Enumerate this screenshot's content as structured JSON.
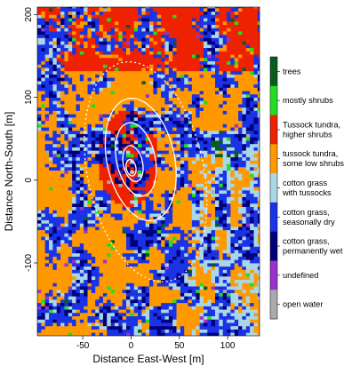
{
  "chart_data": {
    "type": "heatmap",
    "title": "",
    "xlabel": "Distance East-West [m]",
    "ylabel": "Distance North-South [m]",
    "xlim": [
      -97,
      133
    ],
    "ylim": [
      -188,
      209
    ],
    "x_ticks": [
      -50,
      0,
      50,
      100
    ],
    "y_ticks": [
      -100,
      0,
      100,
      200
    ],
    "tick_labels_x": [
      "-50",
      "0",
      "50",
      "100"
    ],
    "tick_labels_y": [
      "-100",
      "0",
      "100",
      "200"
    ],
    "grid": false,
    "legend_position": "right",
    "legend": [
      {
        "label": "trees",
        "color": "#0a5c1e"
      },
      {
        "label": "mostly shrubs",
        "color": "#22dd22"
      },
      {
        "label": "Tussock tundra, higher shrubs",
        "color": "#ee2200"
      },
      {
        "label": "tussock tundra, some low shrubs",
        "color": "#ff9900"
      },
      {
        "label": "cotton grass with tussocks",
        "color": "#aad7e6"
      },
      {
        "label": "cotton grass, seasonally dry",
        "color": "#1a33e6"
      },
      {
        "label": "cotton grass, permanently wet",
        "color": "#00007a"
      },
      {
        "label": "undefined",
        "color": "#9933cc"
      },
      {
        "label": "open water",
        "color": "#aaaaaa"
      }
    ],
    "legend_lines": [
      [
        "trees"
      ],
      [
        "mostly shrubs"
      ],
      [
        "Tussock tundra,",
        "higher shrubs"
      ],
      [
        "tussock tundra,",
        "some low shrubs"
      ],
      [
        "cotton grass",
        "with tussocks"
      ],
      [
        "cotton grass,",
        "seasonally dry"
      ],
      [
        "cotton grass,",
        "permanently wet"
      ],
      [
        "undefined"
      ],
      [
        "open water"
      ]
    ],
    "contour_color": "#ffffff"
  }
}
